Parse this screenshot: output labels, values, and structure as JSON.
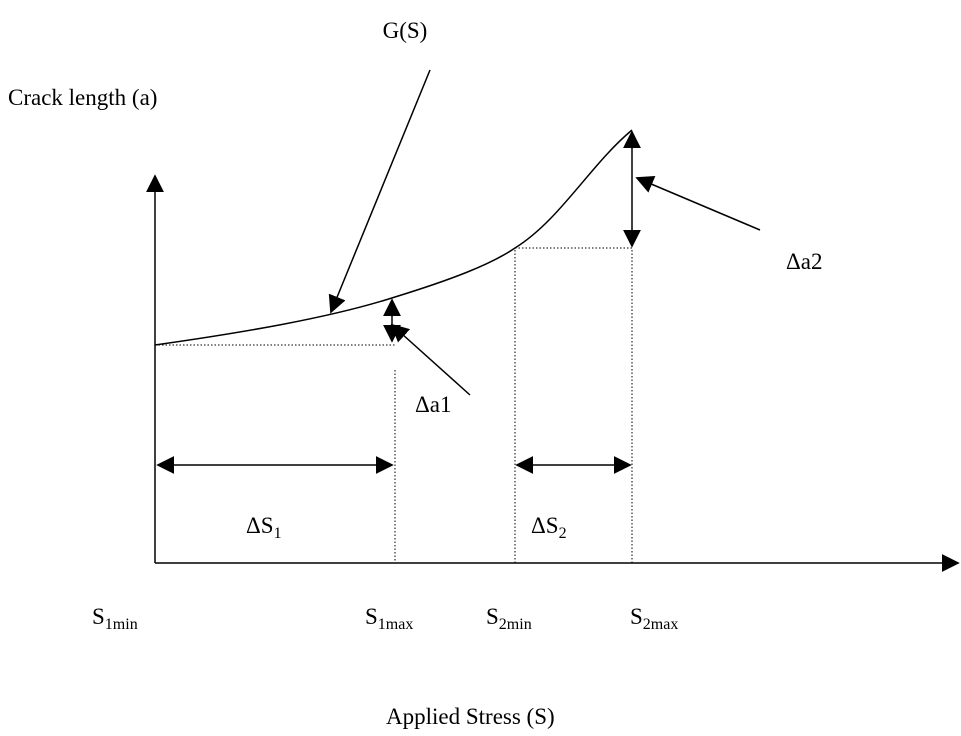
{
  "labels": {
    "curve": "G(S)",
    "y_axis": "Crack length (a)",
    "x_axis": "Applied Stress  (S)",
    "delta_a1": "Δa1",
    "delta_a2": "Δa2",
    "delta_s1": {
      "base": "ΔS",
      "sub": "1"
    },
    "delta_s2": {
      "base": "ΔS",
      "sub": "2"
    },
    "s1min": {
      "base": "S",
      "sub": "1min"
    },
    "s1max": {
      "base": "S",
      "sub": "1max"
    },
    "s2min": {
      "base": "S",
      "sub": "2min"
    },
    "s2max": {
      "base": "S",
      "sub": "2max"
    }
  }
}
